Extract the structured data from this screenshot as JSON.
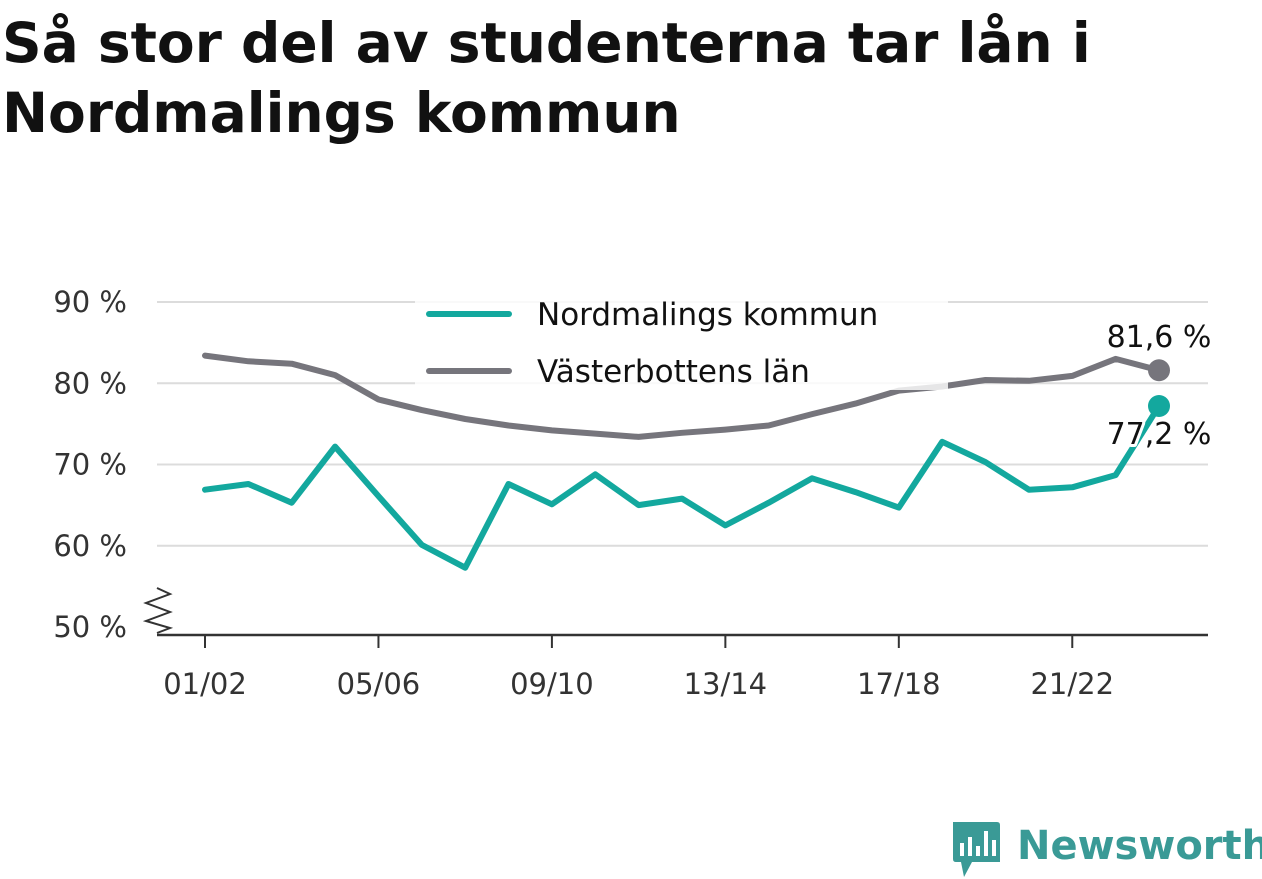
{
  "chart_data": {
    "type": "line",
    "title": "Så stor del av studenterna tar lån i Nordmalings kommun",
    "x": [
      "01/02",
      "02/03",
      "03/04",
      "04/05",
      "05/06",
      "06/07",
      "07/08",
      "08/09",
      "09/10",
      "10/11",
      "11/12",
      "12/13",
      "13/14",
      "14/15",
      "15/16",
      "16/17",
      "17/18",
      "18/19",
      "19/20",
      "20/21",
      "21/22",
      "22/23",
      "23/24"
    ],
    "x_tick_labels": [
      "01/02",
      "05/06",
      "09/10",
      "13/14",
      "17/18",
      "21/22"
    ],
    "y_tick_labels": [
      "50 %",
      "60 %",
      "70 %",
      "80 %",
      "90 %"
    ],
    "y_ticks": [
      50,
      60,
      70,
      80,
      90
    ],
    "ylim": [
      50,
      90
    ],
    "y_axis_break": true,
    "grid": true,
    "legend_position": "top-center",
    "series": [
      {
        "name": "Nordmalings kommun",
        "color": "#13a89e",
        "values": [
          66.9,
          67.6,
          65.3,
          72.2,
          66.1,
          60.1,
          57.3,
          67.6,
          65.1,
          68.8,
          65.0,
          65.8,
          62.5,
          65.3,
          68.3,
          66.6,
          64.7,
          72.8,
          70.3,
          66.9,
          67.2,
          68.7,
          77.2
        ],
        "end_label": "77,2 %"
      },
      {
        "name": "Västerbottens län",
        "color": "#76757c",
        "values": [
          83.4,
          82.7,
          82.4,
          81.0,
          78.0,
          76.7,
          75.6,
          74.8,
          74.2,
          73.8,
          73.4,
          73.9,
          74.3,
          74.8,
          76.2,
          77.5,
          79.1,
          79.6,
          80.4,
          80.3,
          80.9,
          83.0,
          81.6
        ],
        "end_label": "81,6 %"
      }
    ]
  },
  "branding": {
    "name": "Newsworthy",
    "color": "#3a9a96",
    "icon": "newsworthy-logo-icon"
  }
}
